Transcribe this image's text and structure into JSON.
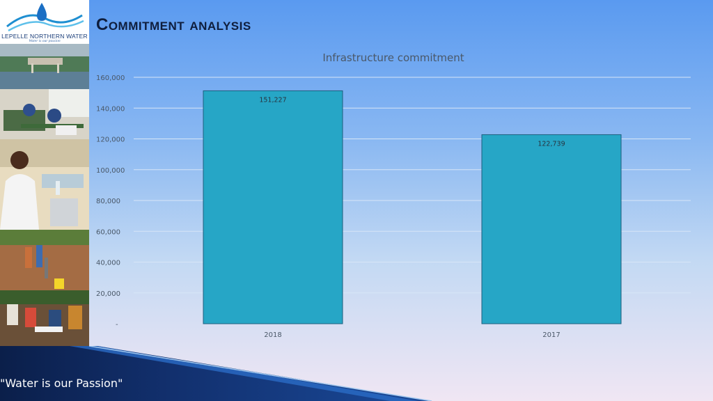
{
  "logo": {
    "name": "LEPELLE NORTHERN WATER",
    "tagline": "Water is our passion"
  },
  "page_title": "Commitment analysis",
  "footer": {
    "motto": "\"Water is our Passion\""
  },
  "colors": {
    "bar_fill": "#26a6c6",
    "bar_stroke": "#1d5f7e",
    "title_text": "#0f1e3d"
  },
  "chart_data": {
    "type": "bar",
    "title": "Infrastructure commitment",
    "categories": [
      "2018",
      "2017"
    ],
    "values": [
      151227,
      122739
    ],
    "data_labels": [
      "151,227",
      "122,739"
    ],
    "ylim": [
      0,
      160000
    ],
    "y_ticks": [
      0,
      20000,
      40000,
      60000,
      80000,
      100000,
      120000,
      140000,
      160000
    ],
    "y_tick_labels": [
      "-",
      "20,000",
      "40,000",
      "60,000",
      "80,000",
      "100,000",
      "120,000",
      "140,000",
      "160,000"
    ],
    "grid": true,
    "legend": "none"
  }
}
